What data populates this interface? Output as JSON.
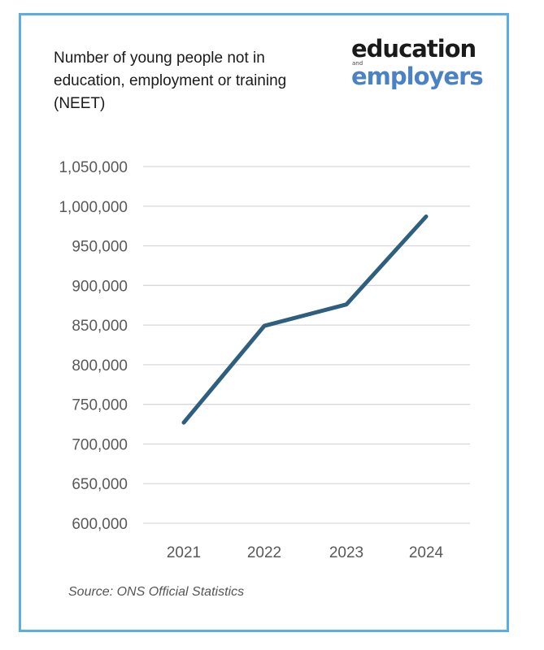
{
  "title": "Number of young people not in education, employment or training (NEET)",
  "logo": {
    "line1": "education",
    "line2_small": "and",
    "line3": "employers"
  },
  "source": "Source: ONS Official Statistics",
  "colors": {
    "frame": "#5aaee6",
    "line": "#2e5f7f",
    "grid": "#d9d9d9",
    "logo_accent": "#4a82c4"
  },
  "chart_data": {
    "type": "line",
    "categories": [
      "2021",
      "2022",
      "2023",
      "2024"
    ],
    "series": [
      {
        "values": [
          727000,
          849000,
          876000,
          987000
        ]
      }
    ],
    "ylim": [
      600000,
      1050000
    ],
    "yticks": [
      600000,
      650000,
      700000,
      750000,
      800000,
      850000,
      900000,
      950000,
      1000000,
      1050000
    ],
    "ytick_labels": [
      "600,000",
      "650,000",
      "700,000",
      "750,000",
      "800,000",
      "850,000",
      "900,000",
      "950,000",
      "1,000,000",
      "1,050,000"
    ],
    "grid": "horizontal",
    "legend": "none"
  }
}
